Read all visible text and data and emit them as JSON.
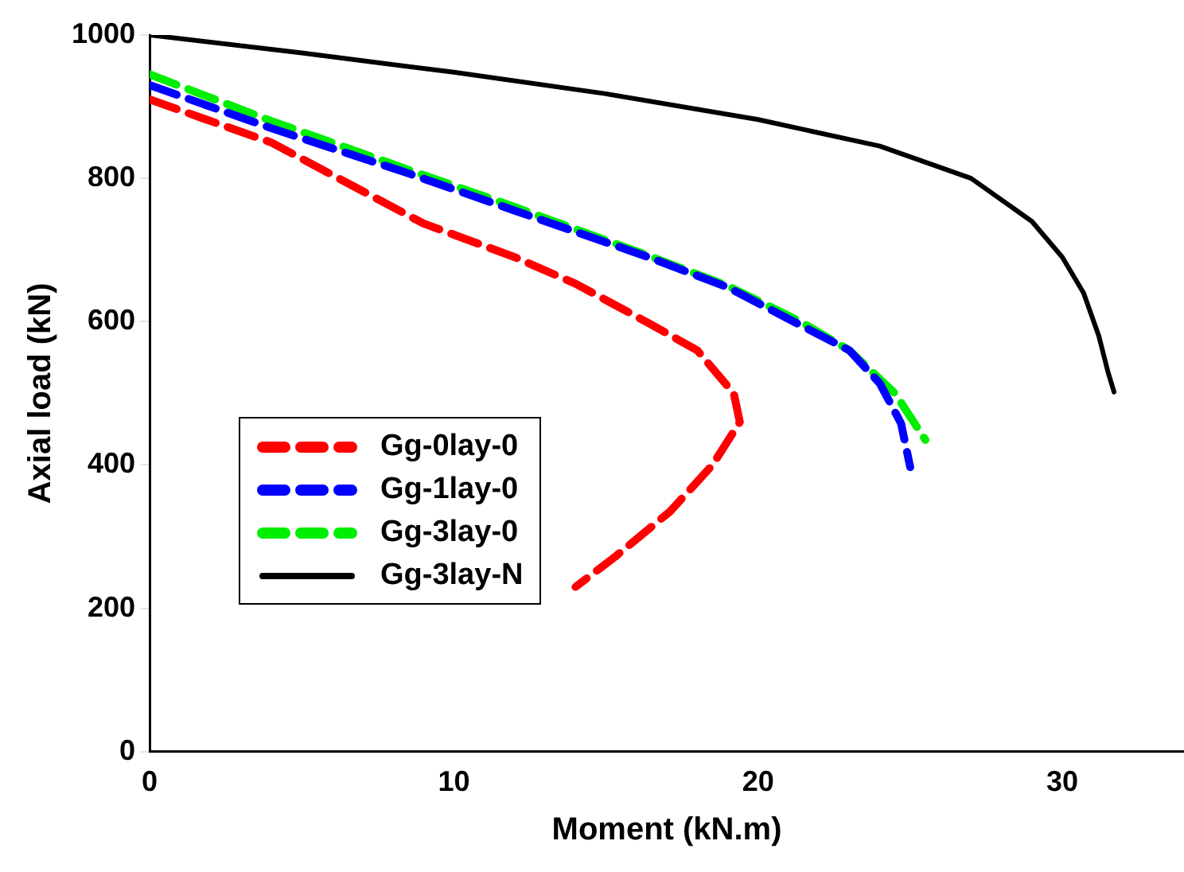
{
  "chart_data": {
    "type": "line",
    "xlabel": "Moment (kN.m)",
    "ylabel": "Axial load (kN)",
    "xlim": [
      0,
      34
    ],
    "xticks": [
      0,
      10,
      20,
      30
    ],
    "ylim": [
      0,
      1000
    ],
    "yticks": [
      0,
      200,
      400,
      600,
      800,
      1000
    ],
    "grid": false,
    "legend": "left",
    "marker": "none",
    "series": [
      {
        "name": "Gg-0lay-0",
        "color": "#ff0000",
        "line_style": "dashed",
        "x": [
          0,
          4,
          9,
          12,
          14,
          16.4,
          18,
          19.2,
          19.4,
          18.5,
          17.1,
          15.3,
          14
        ],
        "values": [
          910,
          850,
          737,
          690,
          653,
          598,
          560,
          500,
          460,
          400,
          335,
          272,
          230
        ]
      },
      {
        "name": "Gg-1lay-0",
        "color": "#0000ff",
        "line_style": "dashed",
        "x": [
          0,
          4,
          8.5,
          12,
          16.4,
          19,
          21.4,
          23,
          24,
          24.7,
          25
        ],
        "values": [
          930,
          870,
          807,
          755,
          690,
          648,
          595,
          560,
          514,
          458,
          397
        ]
      },
      {
        "name": "Gg-3lay-0",
        "color": "#00ee00",
        "line_style": "dashed",
        "x": [
          0,
          4,
          8.5,
          12,
          16.4,
          19,
          21.4,
          23,
          24.5,
          25.5
        ],
        "values": [
          945,
          880,
          812,
          760,
          692,
          650,
          600,
          560,
          500,
          435
        ]
      },
      {
        "name": "Gg-3lay-N",
        "color": "#000000",
        "line_style": "solid",
        "x": [
          0,
          5,
          10,
          15,
          20,
          24,
          27,
          29,
          30,
          30.7,
          31.2,
          31.5,
          31.7
        ],
        "values": [
          1000,
          975,
          948,
          918,
          882,
          845,
          800,
          740,
          690,
          640,
          580,
          530,
          502
        ]
      }
    ]
  }
}
